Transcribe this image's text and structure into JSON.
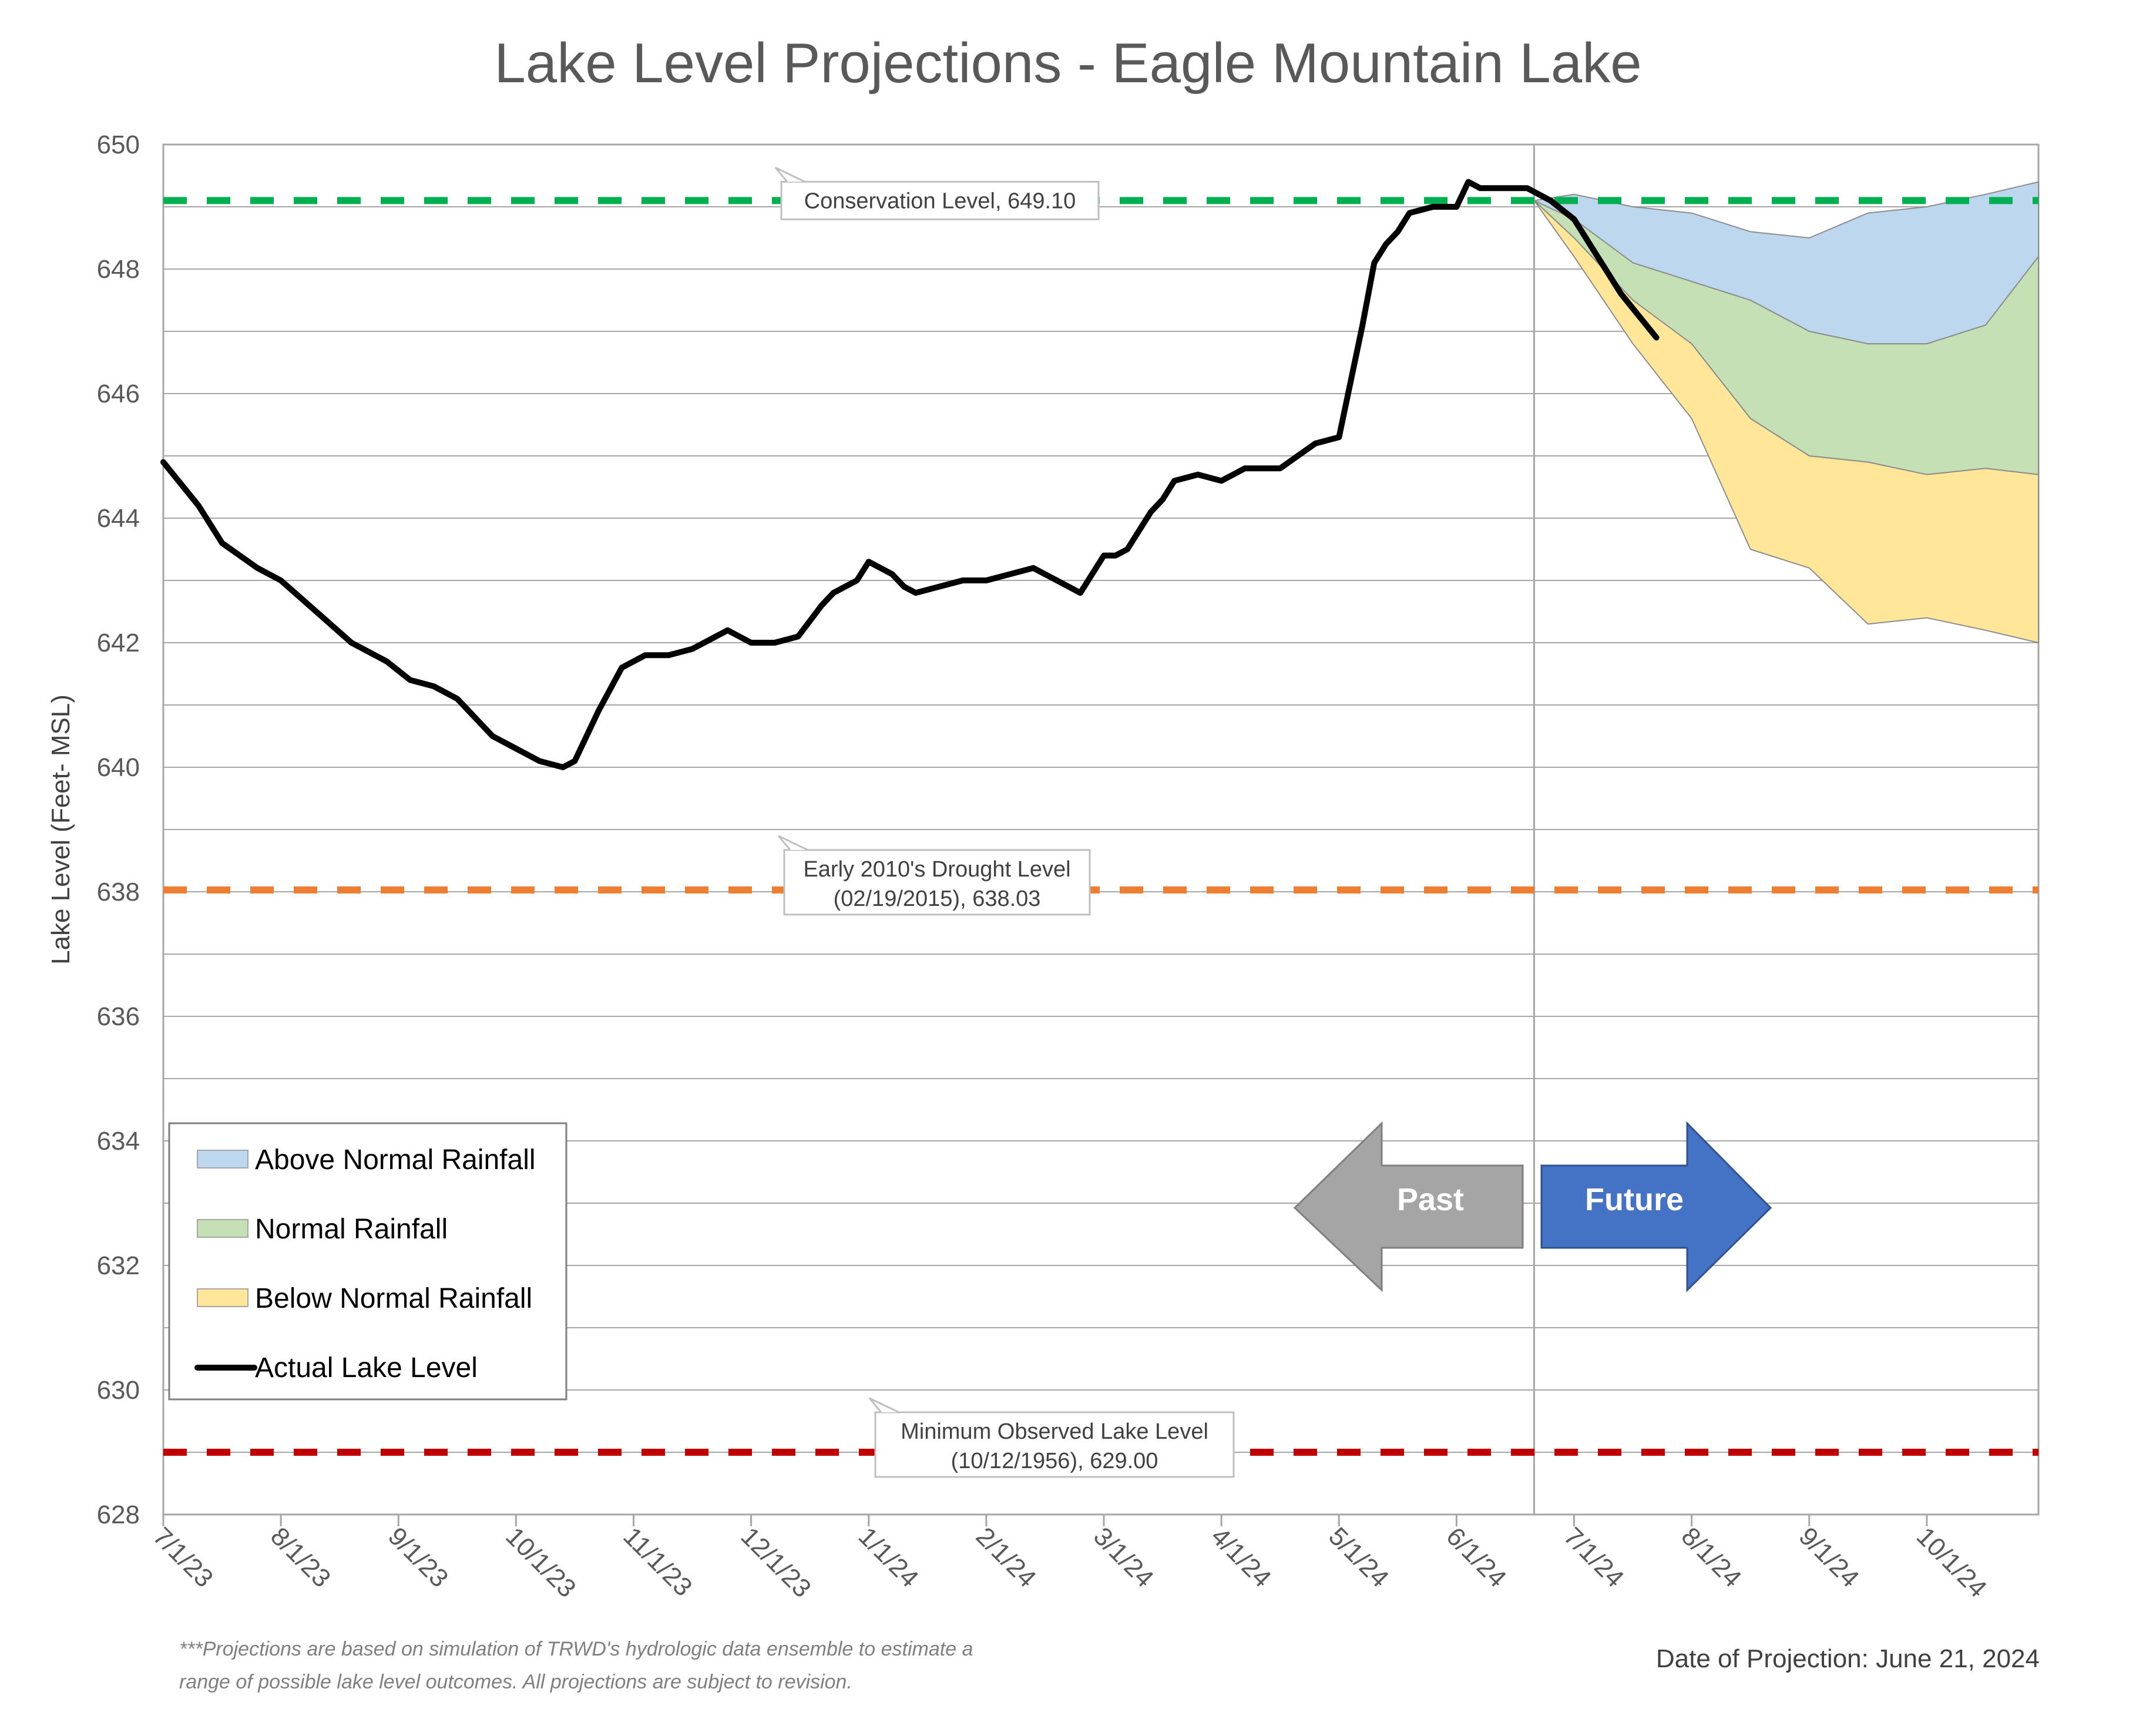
{
  "chart_data": {
    "type": "area",
    "title": "Lake Level Projections - Eagle Mountain Lake",
    "ylabel": "Lake Level (Feet- MSL)",
    "xlabel": "",
    "ylim": [
      628,
      650
    ],
    "yticks": [
      628,
      630,
      632,
      634,
      636,
      638,
      640,
      642,
      644,
      646,
      648,
      650
    ],
    "x_tick_labels": [
      "7/1/23",
      "8/1/23",
      "9/1/23",
      "10/1/23",
      "11/1/23",
      "12/1/23",
      "1/1/24",
      "2/1/24",
      "3/1/24",
      "4/1/24",
      "5/1/24",
      "6/1/24",
      "7/1/24",
      "8/1/24",
      "9/1/24",
      "10/1/24"
    ],
    "xlim_months": [
      0,
      15.95
    ],
    "projection_divider_month": 11.66,
    "reference_lines": [
      {
        "name": "Conservation Level",
        "value": 649.1,
        "color": "#00b050",
        "label_lines": [
          "Conservation Level, 649.10"
        ]
      },
      {
        "name": "Early 2010's Drought Level",
        "value": 638.03,
        "color": "#ed7d31",
        "label_lines": [
          "Early 2010's Drought Level",
          "(02/19/2015), 638.03"
        ]
      },
      {
        "name": "Minimum Observed Lake Level",
        "value": 629.0,
        "color": "#c00000",
        "label_lines": [
          "Minimum Observed Lake Level",
          "(10/12/1956), 629.00"
        ]
      }
    ],
    "series": [
      {
        "name": "Above Normal Rainfall",
        "color": "#bdd7ee",
        "type": "area",
        "x_months": [
          11.66,
          12.0,
          12.5,
          13.0,
          13.5,
          14.0,
          14.5,
          15.0,
          15.5,
          15.95
        ],
        "upper": [
          649.1,
          649.2,
          649.0,
          648.9,
          648.6,
          648.5,
          648.9,
          649.0,
          649.2,
          649.4
        ],
        "lower": [
          649.1,
          648.8,
          648.1,
          647.8,
          647.5,
          647.0,
          646.8,
          646.8,
          647.1,
          648.2
        ]
      },
      {
        "name": "Normal Rainfall",
        "color": "#c5e0b4",
        "type": "area",
        "x_months": [
          11.66,
          12.0,
          12.5,
          13.0,
          13.5,
          14.0,
          14.5,
          15.0,
          15.5,
          15.95
        ],
        "upper": [
          649.1,
          648.8,
          648.1,
          647.8,
          647.5,
          647.0,
          646.8,
          646.8,
          647.1,
          648.2
        ],
        "lower": [
          649.1,
          648.5,
          647.5,
          646.8,
          645.6,
          645.0,
          644.9,
          644.7,
          644.8,
          644.7
        ]
      },
      {
        "name": "Below Normal Rainfall",
        "color": "#ffe699",
        "type": "area",
        "x_months": [
          11.66,
          12.0,
          12.5,
          13.0,
          13.5,
          14.0,
          14.5,
          15.0,
          15.5,
          15.95
        ],
        "upper": [
          649.1,
          648.5,
          647.5,
          646.8,
          645.6,
          645.0,
          644.9,
          644.7,
          644.8,
          644.7
        ],
        "lower": [
          649.1,
          648.2,
          646.8,
          645.6,
          643.5,
          643.2,
          642.3,
          642.4,
          642.2,
          642.0
        ]
      },
      {
        "name": "Actual Lake Level",
        "color": "#000000",
        "type": "line",
        "x_months": [
          0.0,
          0.3,
          0.5,
          0.8,
          1.0,
          1.3,
          1.6,
          1.9,
          2.1,
          2.3,
          2.4,
          2.5,
          2.6,
          2.8,
          3.0,
          3.2,
          3.4,
          3.5,
          3.7,
          3.9,
          4.0,
          4.1,
          4.2,
          4.3,
          4.5,
          4.8,
          5.0,
          5.2,
          5.4,
          5.6,
          5.7,
          5.8,
          5.9,
          6.0,
          6.2,
          6.3,
          6.4,
          6.6,
          6.8,
          7.0,
          7.2,
          7.4,
          7.6,
          7.8,
          8.0,
          8.1,
          8.2,
          8.4,
          8.5,
          8.6,
          8.8,
          9.0,
          9.2,
          9.4,
          9.5,
          9.8,
          10.0,
          10.1,
          10.2,
          10.3,
          10.4,
          10.5,
          10.6,
          10.8,
          11.0,
          11.1,
          11.2,
          11.4,
          11.6,
          11.8,
          12.0,
          12.2,
          12.4,
          12.7
        ],
        "values": [
          644.9,
          644.2,
          643.6,
          643.2,
          643.0,
          642.5,
          642.0,
          641.7,
          641.4,
          641.3,
          641.2,
          641.1,
          640.9,
          640.5,
          640.3,
          640.1,
          640.0,
          640.1,
          640.9,
          641.6,
          641.7,
          641.8,
          641.8,
          641.8,
          641.9,
          642.2,
          642.0,
          642.0,
          642.1,
          642.6,
          642.8,
          642.9,
          643.0,
          643.3,
          643.1,
          642.9,
          642.8,
          642.9,
          643.0,
          643.0,
          643.1,
          643.2,
          643.0,
          642.8,
          643.4,
          643.4,
          643.5,
          644.1,
          644.3,
          644.6,
          644.7,
          644.6,
          644.8,
          644.8,
          644.8,
          645.2,
          645.3,
          646.2,
          647.1,
          648.1,
          648.4,
          648.6,
          648.9,
          649.0,
          649.0,
          649.4,
          649.3,
          649.3,
          649.3,
          649.1,
          648.8,
          648.2,
          647.6,
          646.9
        ]
      }
    ],
    "legend": {
      "placement": "left-lower",
      "entries": [
        "Above Normal Rainfall",
        "Normal Rainfall",
        "Below Normal Rainfall",
        "Actual Lake Level"
      ]
    },
    "annotations": {
      "past_arrow": "Past",
      "future_arrow": "Future",
      "past_arrow_color": "#a5a5a5",
      "future_arrow_color": "#4472c4",
      "footnote_lines": [
        "***Projections are based on simulation of TRWD's hydrologic data ensemble to estimate a",
        "range of possible lake level outcomes.  All projections are subject to revision."
      ],
      "date_of_projection": "Date of Projection: June 21, 2024"
    },
    "grid": true
  }
}
